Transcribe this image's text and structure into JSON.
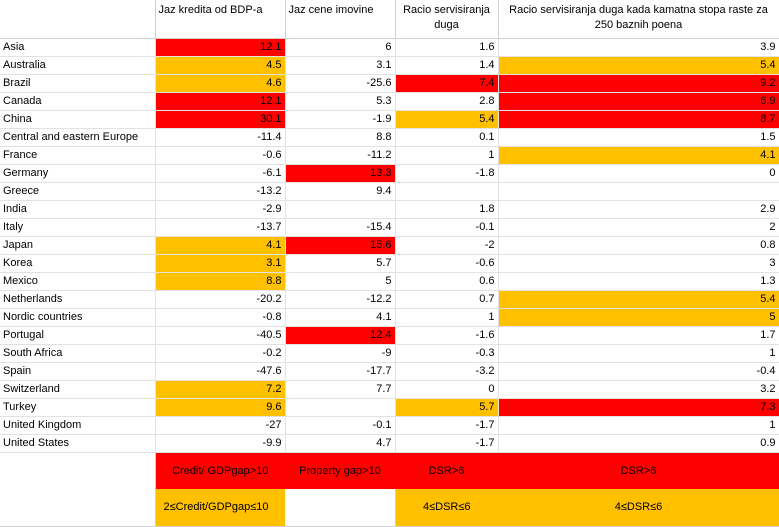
{
  "chart_data": {
    "type": "table",
    "columns": [
      "",
      "Jaz kredita od BDP-a",
      "Jaz cene imovine",
      "Racio servisiranja duga",
      "Racio servisiranja duga kada kamatna stopa raste za 250 baznih poena"
    ],
    "rows": [
      {
        "country": "Asia",
        "values": [
          "12.1",
          "6",
          "1.6",
          "3.9"
        ],
        "colors": [
          "red",
          "",
          "",
          ""
        ]
      },
      {
        "country": "Australia",
        "values": [
          "4.5",
          "3.1",
          "1.4",
          "5.4"
        ],
        "colors": [
          "orange",
          "",
          "",
          "orange"
        ]
      },
      {
        "country": "Brazil",
        "values": [
          "4.6",
          "-25.6",
          "7.4",
          "9.2"
        ],
        "colors": [
          "orange",
          "",
          "red",
          "red"
        ]
      },
      {
        "country": "Canada",
        "values": [
          "12.1",
          "5.3",
          "2.8",
          "6.9"
        ],
        "colors": [
          "red",
          "",
          "",
          "red"
        ]
      },
      {
        "country": "China",
        "values": [
          "30.1",
          "-1.9",
          "5.4",
          "8.7"
        ],
        "colors": [
          "red",
          "",
          "orange",
          "red"
        ]
      },
      {
        "country": "Central and eastern Europe",
        "values": [
          "-11.4",
          "8.8",
          "0.1",
          "1.5"
        ],
        "colors": [
          "",
          "",
          "",
          ""
        ]
      },
      {
        "country": "France",
        "values": [
          "-0.6",
          "-11.2",
          "1",
          "4.1"
        ],
        "colors": [
          "",
          "",
          "",
          "orange"
        ]
      },
      {
        "country": "Germany",
        "values": [
          "-6.1",
          "13.3",
          "-1.8",
          "0"
        ],
        "colors": [
          "",
          "red",
          "",
          ""
        ]
      },
      {
        "country": "Greece",
        "values": [
          "-13.2",
          "9.4",
          "",
          ""
        ],
        "colors": [
          "",
          "",
          "",
          ""
        ]
      },
      {
        "country": "India",
        "values": [
          "-2.9",
          "",
          "1.8",
          "2.9"
        ],
        "colors": [
          "",
          "",
          "",
          ""
        ]
      },
      {
        "country": "Italy",
        "values": [
          "-13.7",
          "-15.4",
          "-0.1",
          "2"
        ],
        "colors": [
          "",
          "",
          "",
          ""
        ]
      },
      {
        "country": "Japan",
        "values": [
          "4.1",
          "15.6",
          "-2",
          "0.8"
        ],
        "colors": [
          "orange",
          "red",
          "",
          ""
        ]
      },
      {
        "country": "Korea",
        "values": [
          "3.1",
          "5.7",
          "-0.6",
          "3"
        ],
        "colors": [
          "orange",
          "",
          "",
          ""
        ]
      },
      {
        "country": "Mexico",
        "values": [
          "8.8",
          "5",
          "0.6",
          "1.3"
        ],
        "colors": [
          "orange",
          "",
          "",
          ""
        ]
      },
      {
        "country": "Netherlands",
        "values": [
          "-20.2",
          "-12.2",
          "0.7",
          "5.4"
        ],
        "colors": [
          "",
          "",
          "",
          "orange"
        ]
      },
      {
        "country": "Nordic countries",
        "values": [
          "-0.8",
          "4.1",
          "1",
          "5"
        ],
        "colors": [
          "",
          "",
          "",
          "orange"
        ]
      },
      {
        "country": "Portugal",
        "values": [
          "-40.5",
          "12.4",
          "-1.6",
          "1.7"
        ],
        "colors": [
          "",
          "red",
          "",
          ""
        ]
      },
      {
        "country": "South Africa",
        "values": [
          "-0.2",
          "-9",
          "-0.3",
          "1"
        ],
        "colors": [
          "",
          "",
          "",
          ""
        ]
      },
      {
        "country": "Spain",
        "values": [
          "-47.6",
          "-17.7",
          "-3.2",
          "-0.4"
        ],
        "colors": [
          "",
          "",
          "",
          ""
        ]
      },
      {
        "country": "Switzerland",
        "values": [
          "7.2",
          "7.7",
          "0",
          "3.2"
        ],
        "colors": [
          "orange",
          "",
          "",
          ""
        ]
      },
      {
        "country": "Turkey",
        "values": [
          "9.6",
          "",
          "5.7",
          "7.3"
        ],
        "colors": [
          "orange",
          "",
          "orange",
          "red"
        ]
      },
      {
        "country": "United Kingdom",
        "values": [
          "-27",
          "-0.1",
          "-1.7",
          "1"
        ],
        "colors": [
          "",
          "",
          "",
          ""
        ]
      },
      {
        "country": "United States",
        "values": [
          "-9.9",
          "4.7",
          "-1.7",
          "0.9"
        ],
        "colors": [
          "",
          "",
          "",
          ""
        ]
      }
    ],
    "legend": {
      "red": [
        "Credit/ GDPgap>10",
        "Property gap>10",
        "DSR>6",
        "DSR>6"
      ],
      "orange": [
        "2≤Credit/GDPgap≤10",
        "",
        "4≤DSR≤6",
        "4≤DSR≤6"
      ]
    },
    "colors": {
      "red": "#ff0000",
      "orange": "#ffc000"
    }
  }
}
